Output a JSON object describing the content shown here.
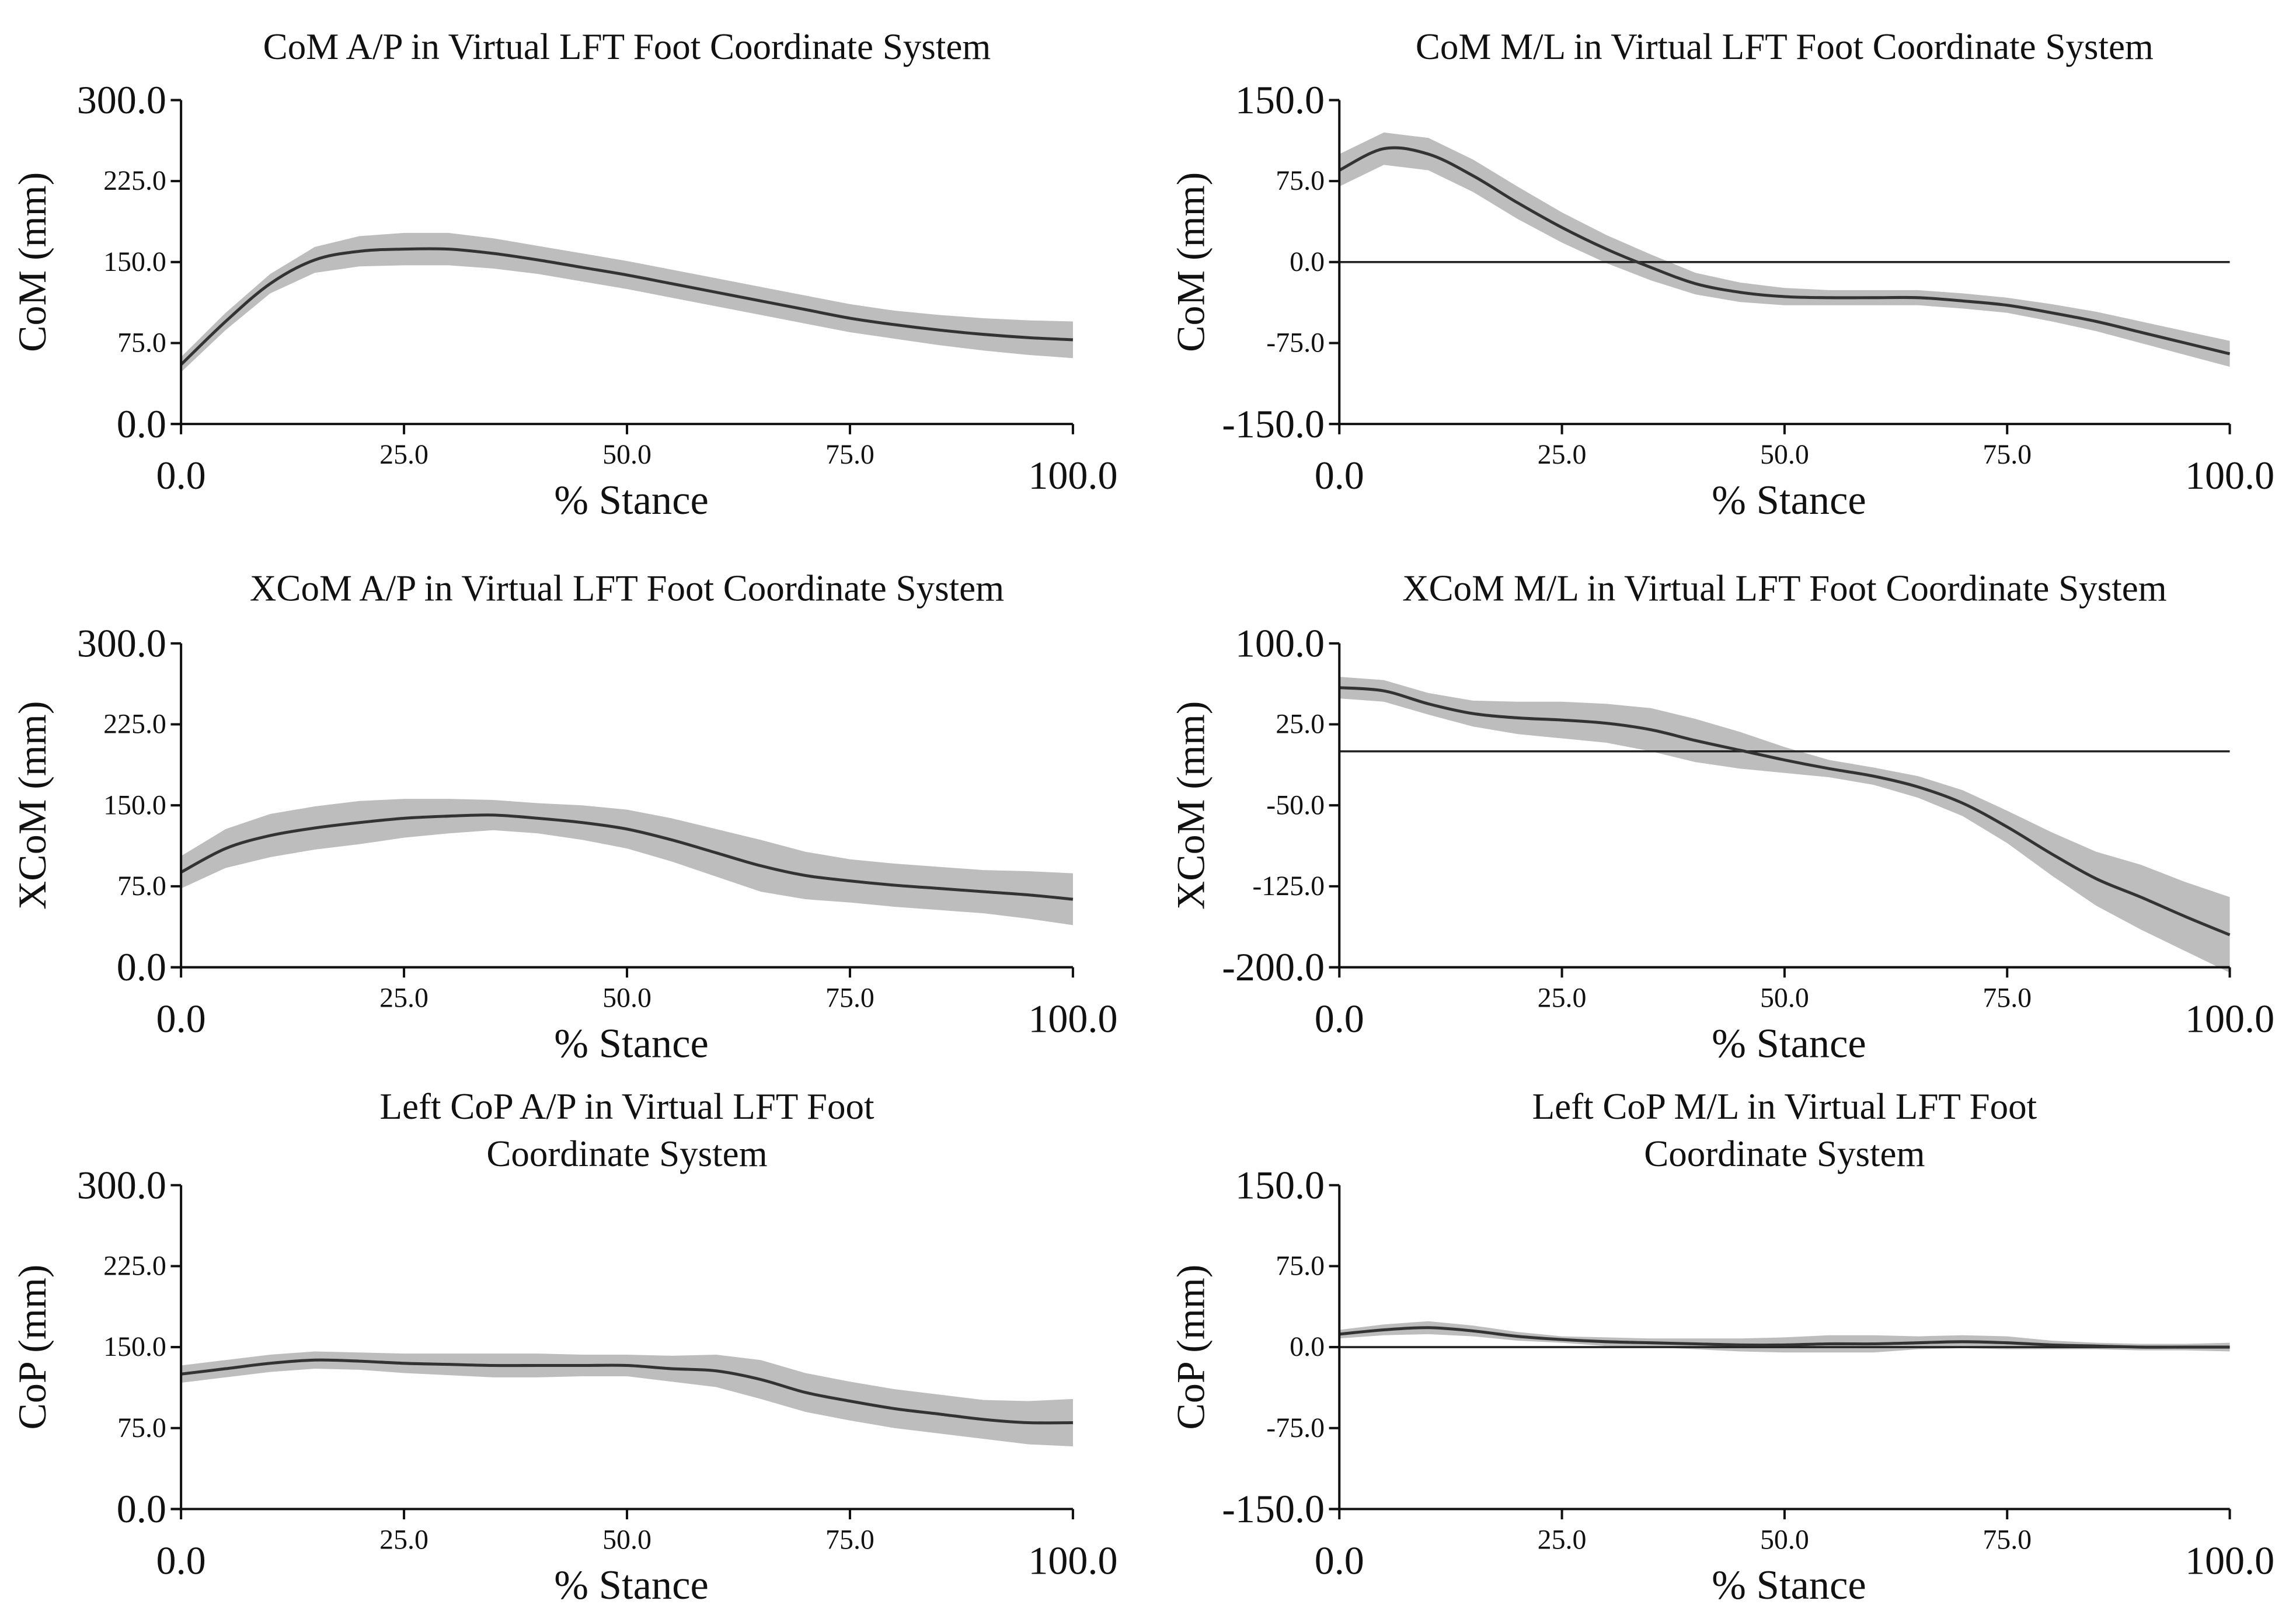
{
  "chart_data": [
    {
      "type": "line",
      "title": [
        "CoM A/P in Virtual LFT Foot Coordinate System"
      ],
      "xlabel": "% Stance",
      "ylabel": "CoM (mm)",
      "xlim": [
        0,
        100
      ],
      "ylim": [
        0,
        300
      ],
      "xticks": [
        "0.0",
        "25.0",
        "50.0",
        "75.0",
        "100.0"
      ],
      "yticks": [
        "0.0",
        "75.0",
        "150.0",
        "225.0",
        "300.0"
      ],
      "zero_line": false,
      "x": [
        0,
        5,
        10,
        15,
        20,
        25,
        30,
        35,
        40,
        45,
        50,
        55,
        60,
        65,
        70,
        75,
        80,
        85,
        90,
        95,
        100
      ],
      "mean": [
        55,
        95,
        130,
        152,
        160,
        162,
        162,
        158,
        152,
        145,
        138,
        130,
        122,
        114,
        106,
        98,
        92,
        87,
        83,
        80,
        78
      ],
      "sd": [
        7,
        8,
        9,
        12,
        14,
        15,
        15,
        14,
        13,
        13,
        13,
        13,
        13,
        13,
        13,
        13,
        13,
        14,
        15,
        16,
        17
      ]
    },
    {
      "type": "line",
      "title": [
        "CoM M/L  in Virtual LFT Foot Coordinate System"
      ],
      "xlabel": "% Stance",
      "ylabel": "CoM (mm)",
      "xlim": [
        0,
        100
      ],
      "ylim": [
        -150,
        150
      ],
      "xticks": [
        "0.0",
        "25.0",
        "50.0",
        "75.0",
        "100.0"
      ],
      "yticks": [
        "-150.0",
        "-75.0",
        "0.0",
        "75.0",
        "150.0"
      ],
      "zero_line": true,
      "x": [
        0,
        5,
        10,
        15,
        20,
        25,
        30,
        35,
        40,
        45,
        50,
        55,
        60,
        65,
        70,
        75,
        80,
        85,
        90,
        95,
        100
      ],
      "mean": [
        85,
        105,
        100,
        80,
        55,
        32,
        12,
        -5,
        -20,
        -28,
        -32,
        -33,
        -33,
        -33,
        -36,
        -40,
        -47,
        -55,
        -65,
        -75,
        -85
      ],
      "sd": [
        15,
        15,
        15,
        15,
        15,
        14,
        13,
        12,
        10,
        9,
        8,
        7,
        7,
        7,
        7,
        7,
        8,
        9,
        10,
        11,
        12
      ]
    },
    {
      "type": "line",
      "title": [
        "XCoM A/P in Virtual LFT Foot Coordinate System"
      ],
      "xlabel": "% Stance",
      "ylabel": "XCoM (mm)",
      "xlim": [
        0,
        100
      ],
      "ylim": [
        0,
        300
      ],
      "xticks": [
        "0.0",
        "25.0",
        "50.0",
        "75.0",
        "100.0"
      ],
      "yticks": [
        "0.0",
        "75.0",
        "150.0",
        "225.0",
        "300.0"
      ],
      "zero_line": false,
      "x": [
        0,
        5,
        10,
        15,
        20,
        25,
        30,
        35,
        40,
        45,
        50,
        55,
        60,
        65,
        70,
        75,
        80,
        85,
        90,
        95,
        100
      ],
      "mean": [
        88,
        110,
        122,
        129,
        134,
        138,
        140,
        141,
        138,
        134,
        128,
        118,
        106,
        94,
        85,
        80,
        76,
        73,
        70,
        67,
        63
      ],
      "sd": [
        15,
        18,
        20,
        20,
        20,
        18,
        16,
        14,
        14,
        16,
        18,
        20,
        22,
        24,
        22,
        20,
        20,
        20,
        20,
        22,
        24
      ]
    },
    {
      "type": "line",
      "title": [
        "XCoM M/L in Virtual LFT Foot Coordinate System"
      ],
      "xlabel": "% Stance",
      "ylabel": "XCoM (mm)",
      "xlim": [
        0,
        100
      ],
      "ylim": [
        -200,
        100
      ],
      "xticks": [
        "0.0",
        "25.0",
        "50.0",
        "75.0",
        "100.0"
      ],
      "yticks": [
        "-200.0",
        "-125.0",
        "-50.0",
        "25.0",
        "100.0"
      ],
      "zero_line": true,
      "x": [
        0,
        5,
        10,
        15,
        20,
        25,
        30,
        35,
        40,
        45,
        50,
        55,
        60,
        65,
        70,
        75,
        80,
        85,
        90,
        95,
        100
      ],
      "mean": [
        59,
        56,
        44,
        35,
        31,
        29,
        26,
        20,
        10,
        1,
        -8,
        -16,
        -23,
        -33,
        -48,
        -70,
        -95,
        -118,
        -135,
        -153,
        -170
      ],
      "sd": [
        10,
        10,
        10,
        12,
        15,
        17,
        18,
        20,
        20,
        17,
        12,
        8,
        8,
        10,
        12,
        15,
        20,
        25,
        30,
        32,
        35
      ]
    },
    {
      "type": "line",
      "title": [
        "Left CoP A/P  in Virtual LFT Foot",
        "Coordinate System"
      ],
      "xlabel": "% Stance",
      "ylabel": "CoP (mm)",
      "xlim": [
        0,
        100
      ],
      "ylim": [
        0,
        300
      ],
      "xticks": [
        "0.0",
        "25.0",
        "50.0",
        "75.0",
        "100.0"
      ],
      "yticks": [
        "0.0",
        "75.0",
        "150.0",
        "225.0",
        "300.0"
      ],
      "zero_line": false,
      "x": [
        0,
        5,
        10,
        15,
        20,
        25,
        30,
        35,
        40,
        45,
        50,
        55,
        60,
        65,
        70,
        75,
        80,
        85,
        90,
        95,
        100
      ],
      "mean": [
        125,
        130,
        135,
        138,
        137,
        135,
        134,
        133,
        133,
        133,
        133,
        130,
        128,
        120,
        108,
        100,
        93,
        88,
        83,
        80,
        80
      ],
      "sd": [
        8,
        8,
        8,
        8,
        8,
        9,
        10,
        11,
        11,
        10,
        10,
        12,
        15,
        18,
        18,
        18,
        18,
        18,
        18,
        20,
        22
      ]
    },
    {
      "type": "line",
      "title": [
        "Left CoP M/L in Virtual LFT Foot",
        "Coordinate System"
      ],
      "xlabel": "% Stance",
      "ylabel": "CoP (mm)",
      "xlim": [
        0,
        100
      ],
      "ylim": [
        -150,
        150
      ],
      "xticks": [
        "0.0",
        "25.0",
        "50.0",
        "75.0",
        "100.0"
      ],
      "yticks": [
        "-150.0",
        "-75.0",
        "0.0",
        "75.0",
        "150.0"
      ],
      "zero_line": true,
      "x": [
        0,
        5,
        10,
        15,
        20,
        25,
        30,
        35,
        40,
        45,
        50,
        55,
        60,
        65,
        70,
        75,
        80,
        85,
        90,
        95,
        100
      ],
      "mean": [
        12,
        16,
        18,
        15,
        10,
        7,
        5,
        4,
        3,
        2,
        2,
        3,
        3,
        4,
        5,
        4,
        2,
        1,
        0,
        0,
        0
      ],
      "sd": [
        4,
        5,
        6,
        5,
        4,
        3,
        4,
        4,
        5,
        6,
        7,
        8,
        8,
        6,
        6,
        6,
        4,
        3,
        3,
        3,
        4
      ]
    }
  ]
}
